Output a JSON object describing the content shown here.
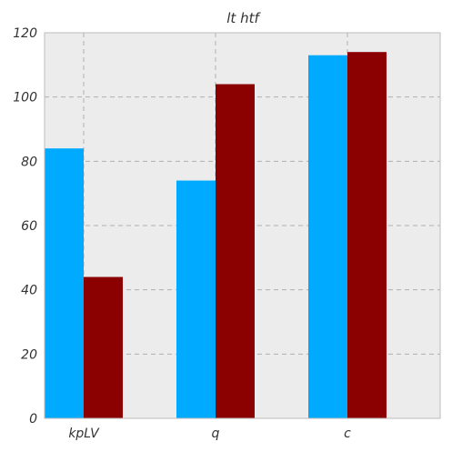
{
  "chart_data": {
    "type": "bar",
    "title": "lt htf",
    "categories": [
      "kpLV",
      "q",
      "c"
    ],
    "series": [
      {
        "values": [
          84,
          74,
          113
        ],
        "color": "#00aaff"
      },
      {
        "values": [
          44,
          104,
          114
        ],
        "color": "#8b0000"
      }
    ],
    "ylim": [
      0,
      120
    ],
    "yticks": [
      0,
      20,
      40,
      60,
      80,
      100,
      120
    ],
    "grid": true,
    "plot_background": "#ececec"
  }
}
